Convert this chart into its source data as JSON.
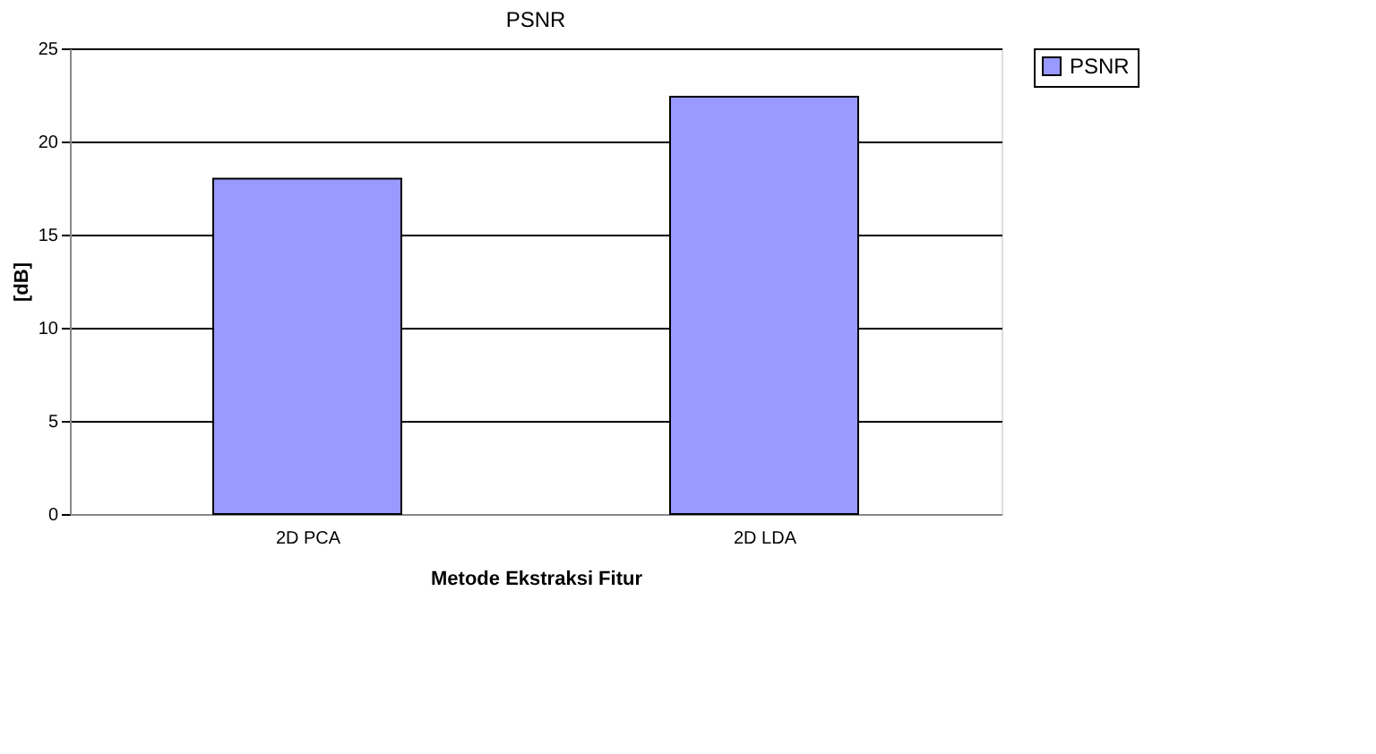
{
  "chart_data": {
    "type": "bar",
    "title": "PSNR",
    "xlabel": "Metode Ekstraksi Fitur",
    "ylabel": "[dB]",
    "categories": [
      "2D PCA",
      "2D LDA"
    ],
    "series": [
      {
        "name": "PSNR",
        "color": "#9999ff",
        "values": [
          18.0,
          22.4
        ]
      }
    ],
    "ylim": [
      0,
      25
    ],
    "yticks": [
      0,
      5,
      10,
      15,
      20,
      25
    ],
    "grid": "y",
    "legend": "right"
  }
}
